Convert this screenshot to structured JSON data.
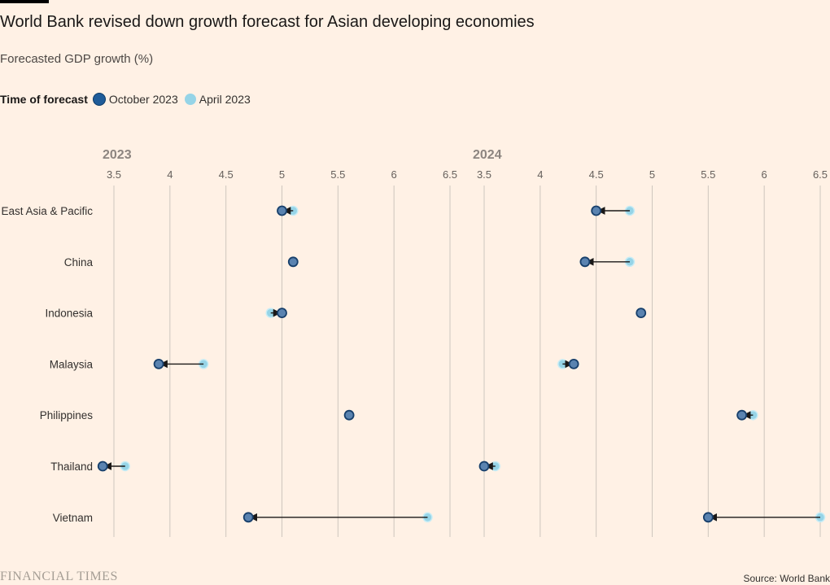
{
  "header": {
    "title": "World Bank revised down growth forecast for Asian developing economies",
    "subtitle": "Forecasted GDP growth (%)"
  },
  "legend": {
    "title": "Time of forecast",
    "items": [
      {
        "label": "October 2023",
        "color": "#1F5C99"
      },
      {
        "label": "April 2023",
        "color": "#96D4E7"
      }
    ]
  },
  "footer": {
    "logo": "FINANCIAL TIMES",
    "source": "Source: World Bank"
  },
  "colors": {
    "october": "#1F5C99",
    "april": "#96D4E7",
    "grid": "#CEC6BE",
    "arrow": "#1a1817",
    "tick_text": "#66605C",
    "panel_title": "#8C8580"
  },
  "chart_data": {
    "type": "dot-arrow",
    "categories": [
      "East Asia & Pacific",
      "China",
      "Indonesia",
      "Malaysia",
      "Philippines",
      "Thailand",
      "Vietnam"
    ],
    "xlim": [
      3.5,
      6.5
    ],
    "ticks": [
      "3.5",
      "4",
      "4.5",
      "5",
      "5.5",
      "6",
      "6.5"
    ],
    "panels": [
      {
        "title": "2023",
        "series": [
          {
            "name": "April 2023",
            "values": [
              5.1,
              5.1,
              4.9,
              4.3,
              5.6,
              3.6,
              6.3
            ]
          },
          {
            "name": "October 2023",
            "values": [
              5.0,
              5.1,
              5.0,
              3.9,
              5.6,
              3.4,
              4.7
            ]
          }
        ]
      },
      {
        "title": "2024",
        "series": [
          {
            "name": "April 2023",
            "values": [
              4.8,
              4.8,
              4.9,
              4.2,
              5.9,
              3.6,
              6.5
            ]
          },
          {
            "name": "October 2023",
            "values": [
              4.5,
              4.4,
              4.9,
              4.3,
              5.8,
              3.5,
              5.5
            ]
          }
        ]
      }
    ]
  }
}
